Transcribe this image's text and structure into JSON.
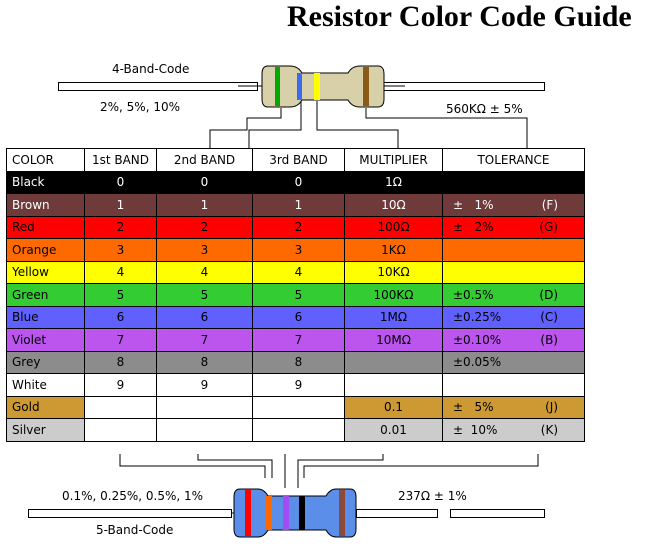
{
  "title": "Resistor Color Code Guide",
  "four_band": {
    "label": "4-Band-Code",
    "tolerance_note": "2%, 5%, 10%",
    "example_value": "560KΩ ± 5%",
    "bands": [
      "#00aa00",
      "#3b6cf0",
      "#ffff00",
      "#8b5a16"
    ]
  },
  "five_band": {
    "label": "5-Band-Code",
    "tolerance_note": "0.1%, 0.25%, 0.5%, 1%",
    "example_value": "237Ω ± 1%",
    "bands": [
      "#ff0000",
      "#ff6a00",
      "#a24cf4",
      "#000000",
      "#8b4a3c"
    ]
  },
  "table": {
    "headers": [
      "COLOR",
      "1st BAND",
      "2nd BAND",
      "3rd BAND",
      "MULTIPLIER",
      "TOLERANCE"
    ],
    "rows": [
      {
        "color": "Black",
        "b1": "0",
        "b2": "0",
        "b3": "0",
        "mult": "1Ω",
        "tol": "",
        "code": "",
        "bg": "#000000",
        "fg": "#ffffff",
        "multBg": "#000000",
        "multFg": "#ffffff",
        "tolBg": "#000000"
      },
      {
        "color": "Brown",
        "b1": "1",
        "b2": "1",
        "b3": "1",
        "mult": "10Ω",
        "tol": "±   1%",
        "code": "(F)",
        "bg": "#6e3a3a",
        "fg": "#ffffff",
        "multBg": "#6e3a3a",
        "multFg": "#ffffff",
        "tolBg": "#6e3a3a"
      },
      {
        "color": "Red",
        "b1": "2",
        "b2": "2",
        "b3": "2",
        "mult": "100Ω",
        "tol": "±   2%",
        "code": "(G)",
        "bg": "#ff0000",
        "fg": "#000000",
        "multBg": "#ff0000",
        "multFg": "#000000",
        "tolBg": "#ff0000"
      },
      {
        "color": "Orange",
        "b1": "3",
        "b2": "3",
        "b3": "3",
        "mult": "1KΩ",
        "tol": "",
        "code": "",
        "bg": "#ff6a00",
        "fg": "#000000",
        "multBg": "#ff6a00",
        "multFg": "#000000",
        "tolBg": "#ff6a00"
      },
      {
        "color": "Yellow",
        "b1": "4",
        "b2": "4",
        "b3": "4",
        "mult": "10KΩ",
        "tol": "",
        "code": "",
        "bg": "#ffff00",
        "fg": "#000000",
        "multBg": "#ffff00",
        "multFg": "#000000",
        "tolBg": "#ffff00"
      },
      {
        "color": "Green",
        "b1": "5",
        "b2": "5",
        "b3": "5",
        "mult": "100KΩ",
        "tol": "±0.5%",
        "code": "(D)",
        "bg": "#33cc33",
        "fg": "#000000",
        "multBg": "#33cc33",
        "multFg": "#000000",
        "tolBg": "#33cc33"
      },
      {
        "color": "Blue",
        "b1": "6",
        "b2": "6",
        "b3": "6",
        "mult": "1MΩ",
        "tol": "±0.25%",
        "code": "(C)",
        "bg": "#6060ff",
        "fg": "#000000",
        "multBg": "#6060ff",
        "multFg": "#000000",
        "tolBg": "#6060ff"
      },
      {
        "color": "Violet",
        "b1": "7",
        "b2": "7",
        "b3": "7",
        "mult": "10MΩ",
        "tol": "±0.10%",
        "code": "(B)",
        "bg": "#bb55ee",
        "fg": "#000000",
        "multBg": "#bb55ee",
        "multFg": "#000000",
        "tolBg": "#bb55ee"
      },
      {
        "color": "Grey",
        "b1": "8",
        "b2": "8",
        "b3": "8",
        "mult": "",
        "tol": "±0.05%",
        "code": "",
        "bg": "#8c8c8c",
        "fg": "#000000",
        "multBg": "#8c8c8c",
        "multFg": "#000000",
        "tolBg": "#8c8c8c"
      },
      {
        "color": "White",
        "b1": "9",
        "b2": "9",
        "b3": "9",
        "mult": "",
        "tol": "",
        "code": "",
        "bg": "#ffffff",
        "fg": "#000000",
        "multBg": "#ffffff",
        "multFg": "#000000",
        "tolBg": "#ffffff"
      },
      {
        "color": "Gold",
        "b1": "",
        "b2": "",
        "b3": "",
        "mult": "0.1",
        "tol": "±   5%",
        "code": "(J)",
        "bg": "#cc9933",
        "fg": "#000000",
        "numBg": "#ffffff",
        "multBg": "#cc9933",
        "multFg": "#000000",
        "tolBg": "#cc9933"
      },
      {
        "color": "Silver",
        "b1": "",
        "b2": "",
        "b3": "",
        "mult": "0.01",
        "tol": "±  10%",
        "code": "(K)",
        "bg": "#cccccc",
        "fg": "#000000",
        "numBg": "#ffffff",
        "multBg": "#cccccc",
        "multFg": "#000000",
        "tolBg": "#cccccc"
      }
    ]
  }
}
